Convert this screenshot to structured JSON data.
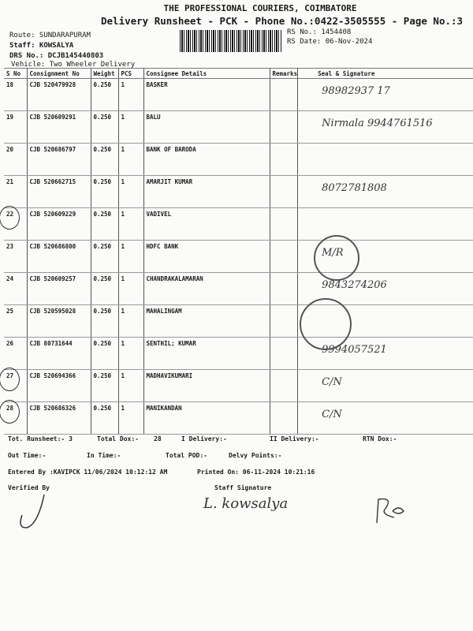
{
  "header": {
    "company": "THE PROFESSIONAL COURIERS, COIMBATORE",
    "subtitle": "Delivery Runsheet - PCK - Phone No.:0422-3505555 - Page No.:3",
    "route": "Route: SUNDARAPURAM",
    "staff": "Staff: KOWSALYA",
    "drs": "DRS No.: DCJB145440803",
    "vehicle": "Vehicle: Two Wheeler Delivery",
    "rs_no": "RS No.: 1454408",
    "rs_date": "RS Date: 06-Nov-2024"
  },
  "table": {
    "columns": [
      "S No",
      "Consignment No",
      "Weight",
      "PCS",
      "Consignee Details",
      "Remarks",
      "Seal & Signature"
    ],
    "rows": [
      {
        "sno": "18",
        "cn": "CJB 520479928",
        "wt": "0.250",
        "pcs": "1",
        "name": "BASKER",
        "hand": "98982937 17",
        "circled": false
      },
      {
        "sno": "19",
        "cn": "CJB 520609291",
        "wt": "0.250",
        "pcs": "1",
        "name": "BALU",
        "hand": "Nirmala 9944761516",
        "circled": false
      },
      {
        "sno": "20",
        "cn": "CJB 520686797",
        "wt": "0.250",
        "pcs": "1",
        "name": "BANK OF BARODA",
        "hand": "",
        "circled": false
      },
      {
        "sno": "21",
        "cn": "CJB 520662715",
        "wt": "0.250",
        "pcs": "1",
        "name": "AMARJIT KUMAR",
        "hand": "8072781808",
        "circled": false
      },
      {
        "sno": "22",
        "cn": "CJB 520609229",
        "wt": "0.250",
        "pcs": "1",
        "name": "VADIVEL",
        "hand": "",
        "circled": true
      },
      {
        "sno": "23",
        "cn": "CJB 520686800",
        "wt": "0.250",
        "pcs": "1",
        "name": "HDFC BANK",
        "hand": "M/R",
        "circled": false
      },
      {
        "sno": "24",
        "cn": "CJB 520609257",
        "wt": "0.250",
        "pcs": "1",
        "name": "CHANDRAKALAMARAN",
        "hand": "9843274206",
        "circled": false
      },
      {
        "sno": "25",
        "cn": "CJB 520595028",
        "wt": "0.250",
        "pcs": "1",
        "name": "MAHALINGAM",
        "hand": "",
        "circled": false
      },
      {
        "sno": "26",
        "cn": "CJB 80731644",
        "wt": "0.250",
        "pcs": "1",
        "name": "SENTHIL; KUMAR",
        "hand": "9994057521",
        "circled": false
      },
      {
        "sno": "27",
        "cn": "CJB 520694366",
        "wt": "0.250",
        "pcs": "1",
        "name": "MADHAVIKUMARI",
        "hand": "C/N",
        "circled": true
      },
      {
        "sno": "28",
        "cn": "CJB 520686326",
        "wt": "0.250",
        "pcs": "1",
        "name": "MANIKANDAN",
        "hand": "C/N",
        "circled": true
      }
    ]
  },
  "footer": {
    "tot_runsheet": "Tot. Runsheet:- 3",
    "total_dox": "Total Dox:-",
    "total_dox_val": "28",
    "i_delivery": "I Delivery:-",
    "ii_delivery": "II Delivery:-",
    "rtn_dox": "RTN Dox:-",
    "out_time": "Out Time:-",
    "in_time": "In Time:-",
    "total_pod": "Total POD:-",
    "delvy_points": "Delvy Points:-",
    "entered_by": "Entered By :KAVIPCK 11/06/2024 10:12:12 AM",
    "printed_on": "Printed On: 06-11-2024 10:21:16",
    "verified_by": "Verified By",
    "staff_signature": "Staff Signature",
    "staff_sig_hand": "L. kowsalya"
  }
}
